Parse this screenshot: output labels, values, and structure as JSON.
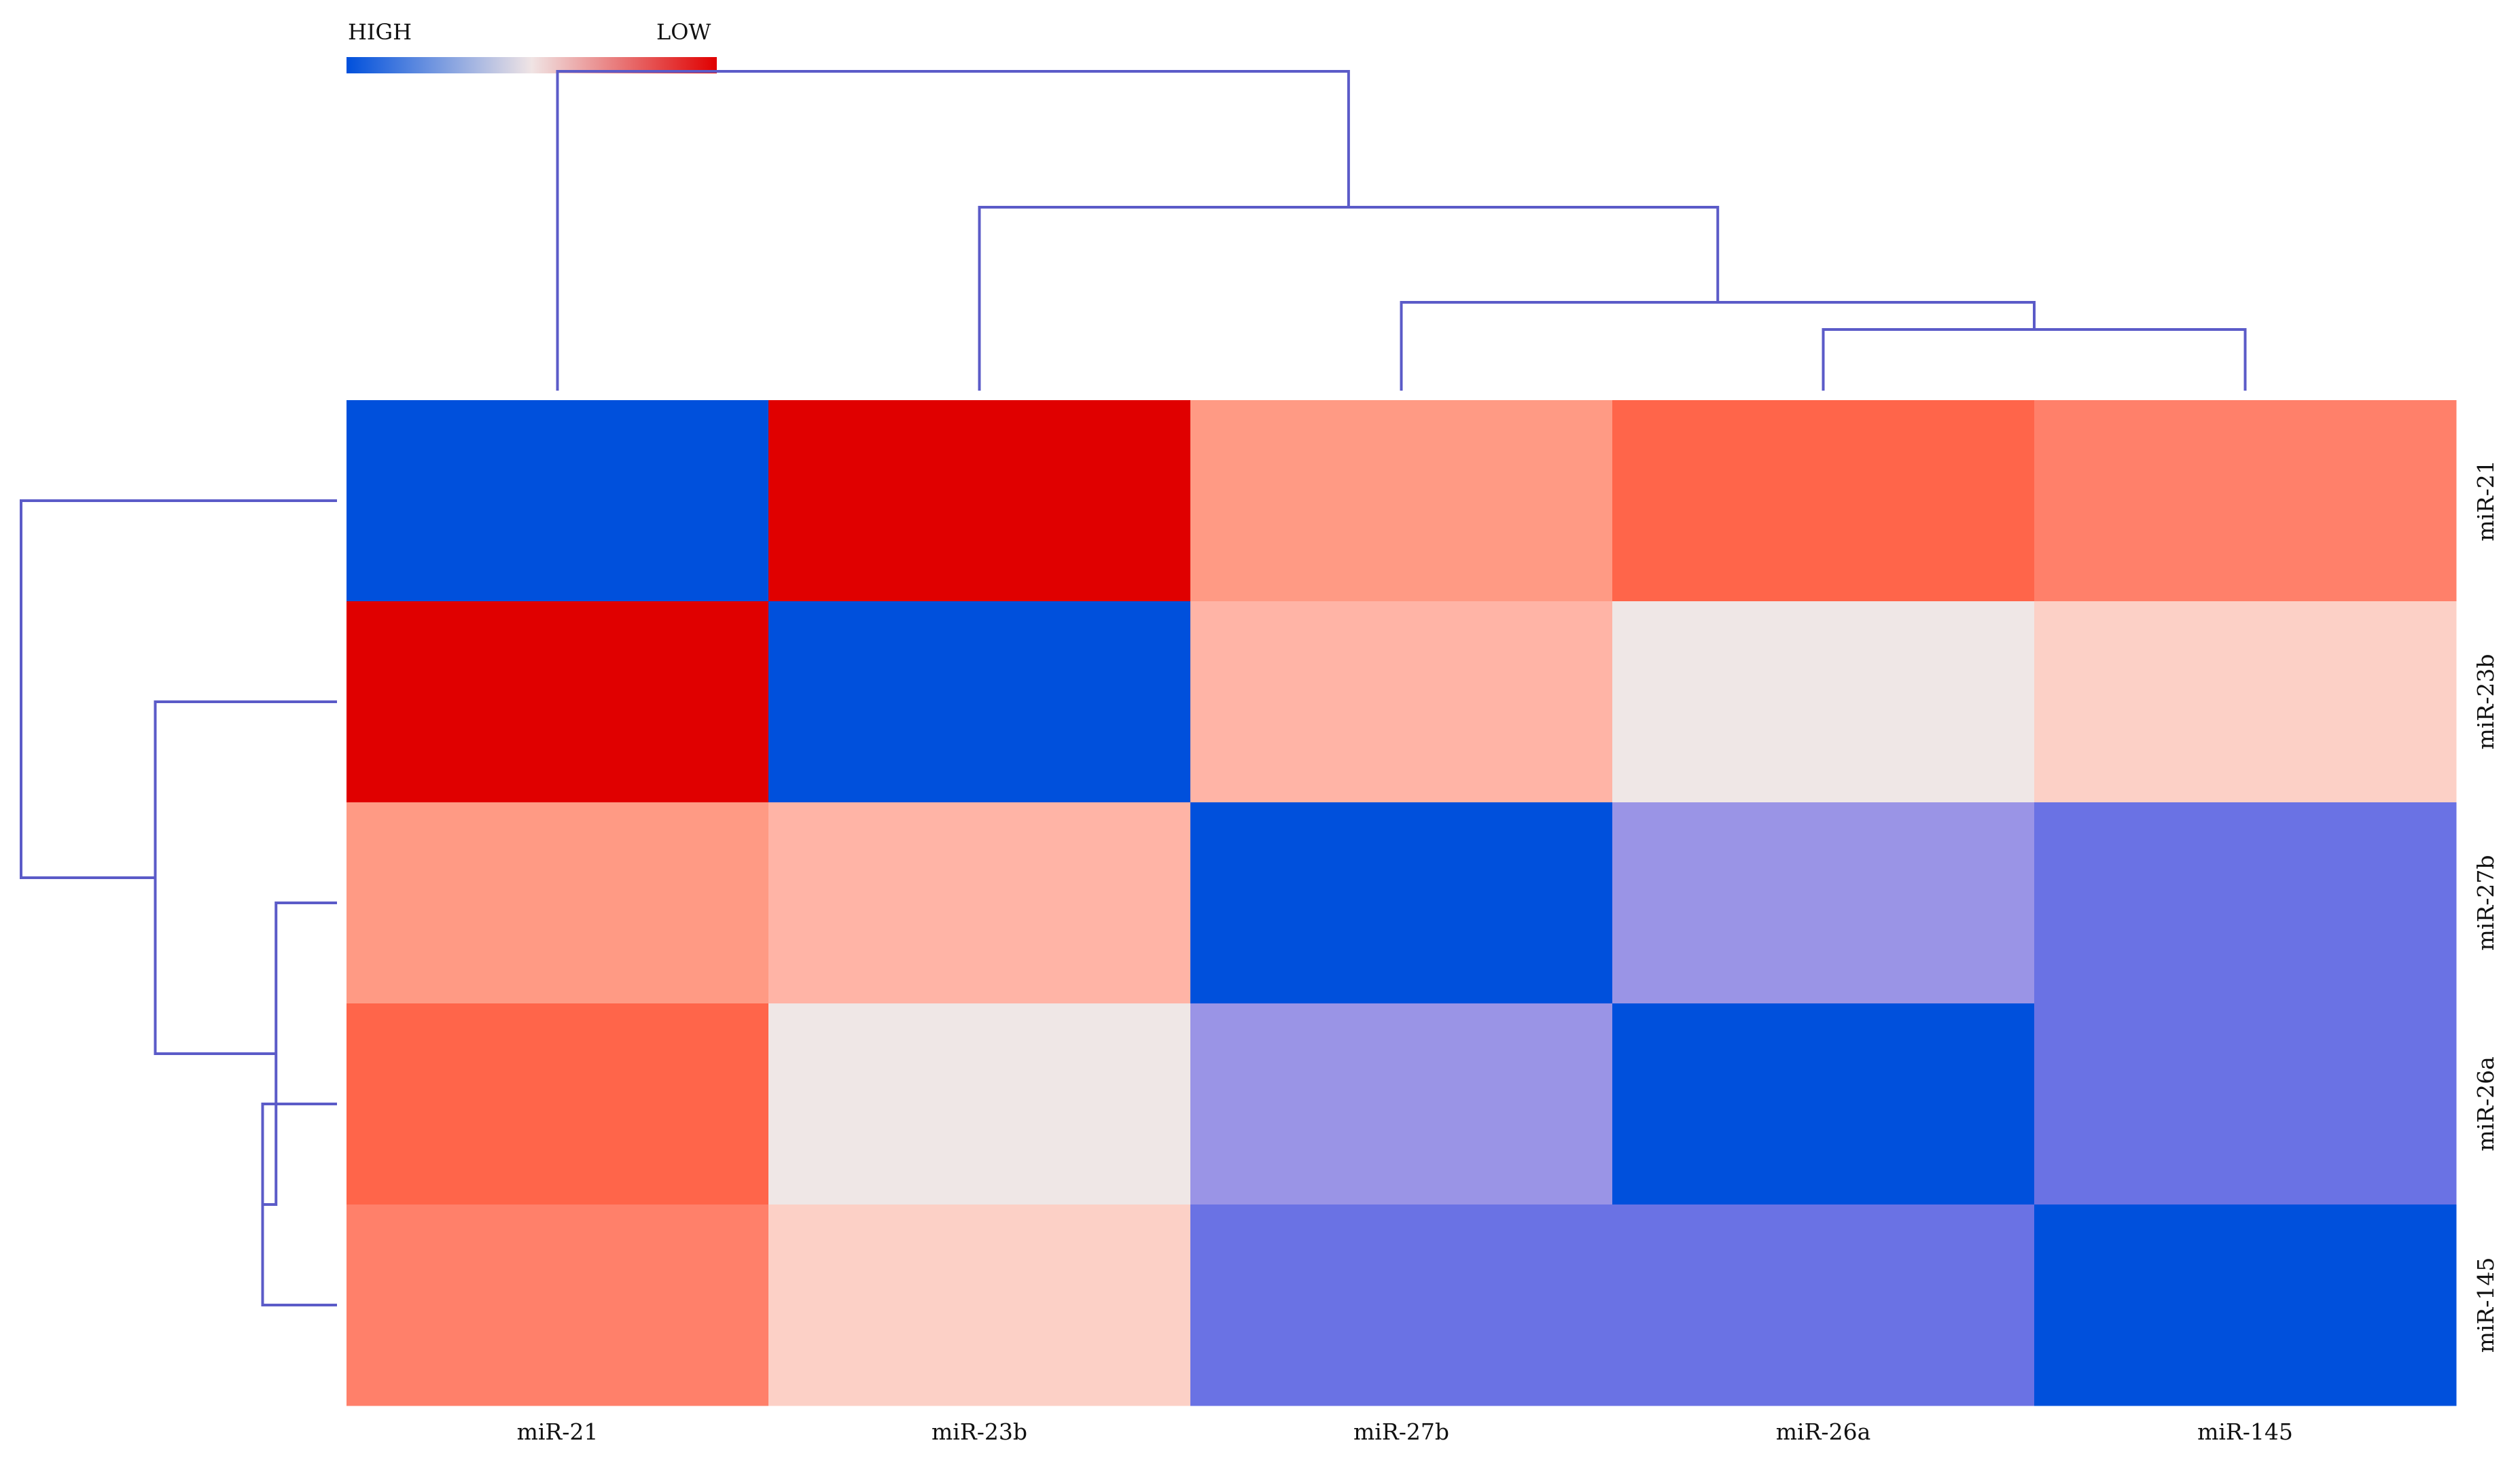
{
  "chart_data": {
    "type": "heatmap",
    "title": "",
    "legend": {
      "high_label": "HIGH",
      "low_label": "LOW",
      "colors": [
        "#0050dc",
        "#f0e4e4",
        "#e00000"
      ],
      "placement": "top-left"
    },
    "columns": [
      "miR-21",
      "miR-23b",
      "miR-27b",
      "miR-26a",
      "miR-145"
    ],
    "rows": [
      "miR-21",
      "miR-23b",
      "miR-27b",
      "miR-26a",
      "miR-145"
    ],
    "values": [
      [
        0.0,
        1.0,
        0.74,
        0.85,
        0.8
      ],
      [
        1.0,
        0.0,
        0.7,
        0.5,
        0.62
      ],
      [
        0.74,
        0.7,
        0.0,
        0.3,
        0.16
      ],
      [
        0.85,
        0.5,
        0.3,
        0.0,
        0.16
      ],
      [
        0.8,
        0.62,
        0.16,
        0.16,
        0.0
      ]
    ],
    "col_dendrogram": {
      "merges": [
        {
          "left": "miR-26a",
          "right": "miR-145",
          "height": 0.05
        },
        {
          "left": "miR-27b",
          "right": "cluster-1",
          "height": 0.15
        },
        {
          "left": "miR-23b",
          "right": "cluster-2",
          "height": 0.5
        },
        {
          "left": "miR-21",
          "right": "cluster-3",
          "height": 1.0
        }
      ]
    },
    "row_dendrogram": {
      "merges": [
        {
          "left": "miR-26a",
          "right": "miR-145",
          "height": 0.1
        },
        {
          "left": "miR-27b",
          "right": "cluster-1",
          "height": 0.05
        },
        {
          "left": "miR-23b",
          "right": "cluster-2",
          "height": 0.5
        },
        {
          "left": "miR-21",
          "right": "cluster-3",
          "height": 1.0
        }
      ]
    },
    "colors": {
      "cell_colors": [
        [
          "#0050dc",
          "#e00000",
          "#ff9a84",
          "#ff654a",
          "#ff806a"
        ],
        [
          "#e00000",
          "#0050dc",
          "#ffb4a6",
          "#efe7e6",
          "#fcd0c6"
        ],
        [
          "#ff9a84",
          "#ffb4a6",
          "#0050dc",
          "#9a94e6",
          "#6a72e4"
        ],
        [
          "#ff654a",
          "#efe7e6",
          "#9a94e6",
          "#0050dc",
          "#6a72e4"
        ],
        [
          "#ff806a",
          "#fcd0c6",
          "#6a72e4",
          "#6a72e4",
          "#0050dc"
        ]
      ],
      "dendrogram": "#5b5bc8"
    }
  }
}
